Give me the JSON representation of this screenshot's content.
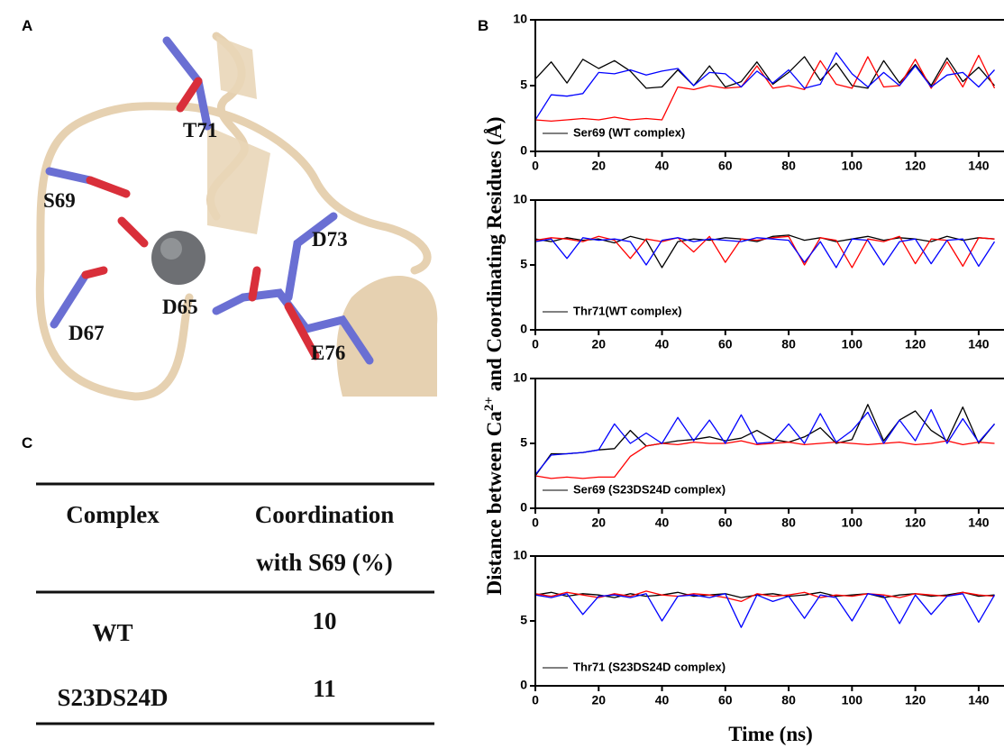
{
  "panels": {
    "a": "A",
    "b": "B",
    "c": "C"
  },
  "structure": {
    "labels": [
      "T71",
      "S69",
      "D73",
      "D65",
      "D67",
      "E76"
    ]
  },
  "table": {
    "header": {
      "complex": "Complex",
      "coordination": [
        "Coordination",
        "with S69 (%)"
      ]
    },
    "rows": [
      [
        "WT",
        10
      ],
      [
        "S23DS24D",
        11
      ]
    ]
  },
  "shared_ylabel": [
    "Distance between Ca",
    "2+",
    " and Coordinating Residues (Å)"
  ],
  "shared_xlabel": "Time (ns)",
  "chart_data": [
    {
      "type": "line",
      "legend": "Ser69 (WT complex)",
      "x": [
        0,
        5,
        10,
        15,
        20,
        25,
        30,
        35,
        40,
        45,
        50,
        55,
        60,
        65,
        70,
        75,
        80,
        85,
        90,
        95,
        100,
        105,
        110,
        115,
        120,
        125,
        130,
        135,
        140,
        145
      ],
      "xlim": [
        0,
        148
      ],
      "xticks": [
        0,
        20,
        40,
        60,
        80,
        100,
        120,
        140
      ],
      "ylim": [
        0,
        10
      ],
      "yticks": [
        0,
        5,
        10
      ],
      "series": [
        {
          "color": "#000000",
          "values": [
            5.5,
            6.8,
            5.2,
            7.0,
            6.3,
            6.9,
            6.1,
            4.8,
            4.9,
            6.2,
            5.0,
            6.5,
            4.9,
            5.3,
            6.8,
            5.1,
            6.0,
            7.2,
            5.4,
            6.7,
            5.0,
            4.8,
            6.9,
            5.2,
            6.6,
            5.0,
            7.1,
            5.3,
            6.4,
            5.0
          ]
        },
        {
          "color": "#ff0000",
          "values": [
            2.4,
            2.3,
            2.4,
            2.5,
            2.4,
            2.6,
            2.4,
            2.5,
            2.4,
            4.9,
            4.7,
            5.0,
            4.8,
            4.9,
            6.5,
            4.8,
            5.0,
            4.7,
            6.9,
            5.1,
            4.8,
            7.2,
            4.9,
            5.0,
            7.0,
            4.8,
            6.8,
            4.9,
            7.3,
            4.8
          ]
        },
        {
          "color": "#0000ff",
          "values": [
            2.4,
            4.3,
            4.2,
            4.4,
            6.0,
            5.9,
            6.2,
            5.8,
            6.1,
            6.3,
            5.0,
            6.0,
            5.9,
            4.9,
            6.1,
            5.2,
            6.2,
            4.8,
            5.1,
            7.5,
            5.9,
            4.9,
            6.0,
            5.0,
            6.5,
            4.9,
            5.8,
            6.0,
            4.9,
            6.2
          ]
        }
      ]
    },
    {
      "type": "line",
      "legend": "Thr71(WT complex)",
      "x": [
        0,
        5,
        10,
        15,
        20,
        25,
        30,
        35,
        40,
        45,
        50,
        55,
        60,
        65,
        70,
        75,
        80,
        85,
        90,
        95,
        100,
        105,
        110,
        115,
        120,
        125,
        130,
        135,
        140,
        145
      ],
      "xlim": [
        0,
        148
      ],
      "xticks": [
        0,
        20,
        40,
        60,
        80,
        100,
        120,
        140
      ],
      "ylim": [
        0,
        10
      ],
      "yticks": [
        0,
        5,
        10
      ],
      "series": [
        {
          "color": "#000000",
          "values": [
            7.0,
            6.8,
            7.1,
            6.9,
            7.0,
            6.7,
            7.2,
            6.9,
            4.8,
            6.8,
            7.0,
            6.9,
            7.1,
            7.0,
            6.8,
            7.2,
            7.3,
            6.9,
            7.1,
            6.8,
            7.0,
            7.2,
            6.9,
            7.1,
            7.0,
            6.8,
            7.2,
            6.9,
            7.1,
            7.0
          ]
        },
        {
          "color": "#ff0000",
          "values": [
            6.9,
            7.1,
            7.0,
            6.8,
            7.2,
            6.9,
            5.5,
            7.0,
            6.8,
            7.1,
            6.0,
            7.2,
            5.2,
            7.0,
            6.9,
            7.1,
            7.2,
            5.0,
            7.1,
            6.9,
            4.8,
            7.0,
            6.8,
            7.2,
            5.1,
            7.0,
            6.9,
            4.9,
            7.1,
            7.0
          ]
        },
        {
          "color": "#0000ff",
          "values": [
            6.8,
            7.0,
            5.5,
            7.1,
            6.9,
            7.0,
            6.8,
            5.0,
            6.9,
            7.1,
            6.8,
            7.0,
            6.9,
            6.8,
            7.1,
            7.0,
            6.9,
            5.2,
            6.8,
            4.8,
            7.0,
            6.9,
            5.0,
            6.8,
            7.0,
            5.1,
            6.9,
            7.0,
            4.9,
            6.8
          ]
        }
      ]
    },
    {
      "type": "line",
      "legend": "Ser69 (S23DS24D complex)",
      "x": [
        0,
        5,
        10,
        15,
        20,
        25,
        30,
        35,
        40,
        45,
        50,
        55,
        60,
        65,
        70,
        75,
        80,
        85,
        90,
        95,
        100,
        105,
        110,
        115,
        120,
        125,
        130,
        135,
        140,
        145
      ],
      "xlim": [
        0,
        148
      ],
      "xticks": [
        0,
        20,
        40,
        60,
        80,
        100,
        120,
        140
      ],
      "ylim": [
        0,
        10
      ],
      "yticks": [
        0,
        5,
        10
      ],
      "series": [
        {
          "color": "#000000",
          "values": [
            2.5,
            4.2,
            4.2,
            4.3,
            4.5,
            4.6,
            6.0,
            4.8,
            5.0,
            5.2,
            5.3,
            5.5,
            5.2,
            5.4,
            6.0,
            5.3,
            5.1,
            5.5,
            6.2,
            5.0,
            5.3,
            8.0,
            5.2,
            6.8,
            7.5,
            6.0,
            5.2,
            7.8,
            5.0,
            6.5
          ]
        },
        {
          "color": "#ff0000",
          "values": [
            2.5,
            2.3,
            2.4,
            2.3,
            2.4,
            2.4,
            4.0,
            4.8,
            5.0,
            4.9,
            5.1,
            5.0,
            5.0,
            5.2,
            4.9,
            5.0,
            5.1,
            4.9,
            5.0,
            5.1,
            5.0,
            4.9,
            5.0,
            5.1,
            4.9,
            5.0,
            5.2,
            4.9,
            5.1,
            5.0
          ]
        },
        {
          "color": "#0000ff",
          "values": [
            2.6,
            4.1,
            4.2,
            4.3,
            4.5,
            6.5,
            5.0,
            5.8,
            5.0,
            7.0,
            5.2,
            6.8,
            5.0,
            7.2,
            5.0,
            5.1,
            6.5,
            5.0,
            7.3,
            5.1,
            6.0,
            7.4,
            5.0,
            6.8,
            5.2,
            7.6,
            5.0,
            6.9,
            5.1,
            6.5
          ]
        }
      ]
    },
    {
      "type": "line",
      "legend": "Thr71 (S23DS24D complex)",
      "x": [
        0,
        5,
        10,
        15,
        20,
        25,
        30,
        35,
        40,
        45,
        50,
        55,
        60,
        65,
        70,
        75,
        80,
        85,
        90,
        95,
        100,
        105,
        110,
        115,
        120,
        125,
        130,
        135,
        140,
        145
      ],
      "xlim": [
        0,
        148
      ],
      "xticks": [
        0,
        20,
        40,
        60,
        80,
        100,
        120,
        140
      ],
      "ylim": [
        0,
        10
      ],
      "yticks": [
        0,
        5,
        10
      ],
      "series": [
        {
          "color": "#000000",
          "values": [
            7.0,
            7.2,
            6.9,
            7.1,
            7.0,
            6.8,
            7.1,
            6.9,
            7.0,
            7.2,
            6.9,
            7.0,
            7.1,
            6.8,
            7.0,
            7.1,
            6.9,
            7.0,
            7.2,
            6.9,
            7.0,
            7.1,
            6.8,
            7.0,
            7.1,
            6.9,
            7.0,
            7.2,
            6.9,
            7.0
          ]
        },
        {
          "color": "#ff0000",
          "values": [
            7.1,
            6.9,
            7.2,
            7.0,
            6.8,
            7.1,
            6.9,
            7.3,
            7.0,
            6.9,
            7.1,
            7.0,
            6.8,
            6.5,
            7.1,
            6.9,
            7.0,
            7.2,
            6.8,
            7.0,
            6.9,
            7.1,
            7.0,
            6.8,
            7.1,
            7.0,
            6.9,
            7.2,
            7.0,
            6.9
          ]
        },
        {
          "color": "#0000ff",
          "values": [
            7.0,
            6.8,
            7.1,
            5.5,
            6.9,
            7.0,
            6.8,
            7.1,
            5.0,
            6.9,
            7.0,
            6.8,
            7.1,
            4.5,
            7.0,
            6.5,
            6.9,
            5.2,
            7.0,
            6.8,
            5.0,
            7.1,
            6.9,
            4.8,
            7.0,
            5.5,
            6.9,
            7.1,
            4.9,
            7.0
          ]
        }
      ]
    }
  ]
}
